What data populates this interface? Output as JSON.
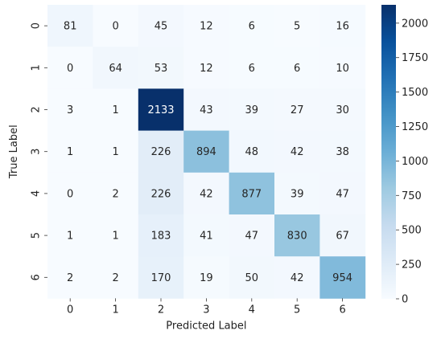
{
  "chart_data": {
    "type": "heatmap",
    "title": "",
    "xlabel": "Predicted Label",
    "ylabel": "True Label",
    "x_categories": [
      "0",
      "1",
      "2",
      "3",
      "4",
      "5",
      "6"
    ],
    "y_categories": [
      "0",
      "1",
      "2",
      "3",
      "4",
      "5",
      "6"
    ],
    "matrix": [
      [
        81,
        0,
        45,
        12,
        6,
        5,
        16
      ],
      [
        0,
        64,
        53,
        12,
        6,
        6,
        10
      ],
      [
        3,
        1,
        2133,
        43,
        39,
        27,
        30
      ],
      [
        1,
        1,
        226,
        894,
        48,
        42,
        38
      ],
      [
        0,
        2,
        226,
        42,
        877,
        39,
        47
      ],
      [
        1,
        1,
        183,
        41,
        47,
        830,
        67
      ],
      [
        2,
        2,
        170,
        19,
        50,
        42,
        954
      ]
    ],
    "colormap": "Blues",
    "colorbar": {
      "min": 0,
      "max": 2133,
      "ticks": [
        0,
        250,
        500,
        750,
        1000,
        1250,
        1500,
        1750,
        2000
      ]
    }
  }
}
